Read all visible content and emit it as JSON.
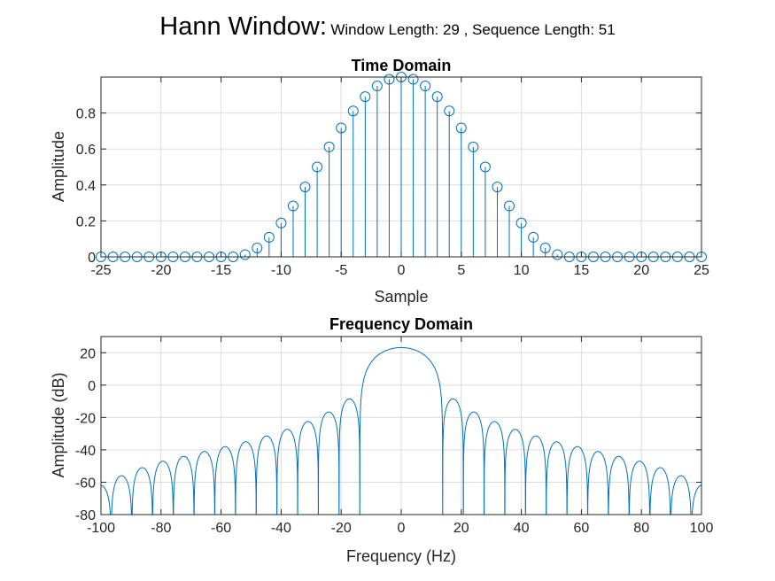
{
  "suptitle": {
    "main": "Hann Window:",
    "sub": "Window Length: 29 , Sequence Length: 51"
  },
  "colors": {
    "series": "#0072BD",
    "grid": "#dcdcdc",
    "axis": "#262626"
  },
  "chart_data": [
    {
      "type": "stem",
      "title": "Time Domain",
      "xlabel": "Sample",
      "ylabel": "Amplitude",
      "xlim": [
        -25,
        25
      ],
      "ylim": [
        0,
        1
      ],
      "xticks": [
        -25,
        -20,
        -15,
        -10,
        -5,
        0,
        5,
        10,
        15,
        20,
        25
      ],
      "yticks": [
        0,
        0.2,
        0.4,
        0.6,
        0.8
      ],
      "grid": true,
      "marker": "circle",
      "x": [
        -25,
        -24,
        -23,
        -22,
        -21,
        -20,
        -19,
        -18,
        -17,
        -16,
        -15,
        -14,
        -13,
        -12,
        -11,
        -10,
        -9,
        -8,
        -7,
        -6,
        -5,
        -4,
        -3,
        -2,
        -1,
        0,
        1,
        2,
        3,
        4,
        5,
        6,
        7,
        8,
        9,
        10,
        11,
        12,
        13,
        14,
        15,
        16,
        17,
        18,
        19,
        20,
        21,
        22,
        23,
        24,
        25
      ],
      "y": [
        0,
        0,
        0,
        0,
        0,
        0,
        0,
        0,
        0,
        0,
        0,
        0,
        0.0125,
        0.0495,
        0.1091,
        0.1883,
        0.2831,
        0.3887,
        0.5,
        0.6113,
        0.7169,
        0.8117,
        0.8909,
        0.9505,
        0.9875,
        1,
        0.9875,
        0.9505,
        0.8909,
        0.8117,
        0.7169,
        0.6113,
        0.5,
        0.3887,
        0.2831,
        0.1883,
        0.1091,
        0.0495,
        0.0125,
        0,
        0,
        0,
        0,
        0,
        0,
        0,
        0,
        0,
        0,
        0,
        0
      ]
    },
    {
      "type": "line",
      "title": "Frequency Domain",
      "xlabel": "Frequency (Hz)",
      "ylabel": "Amplitude (dB)",
      "xlim": [
        -100,
        100
      ],
      "ylim": [
        -80,
        30
      ],
      "xticks": [
        -100,
        -80,
        -60,
        -40,
        -20,
        0,
        20,
        40,
        60,
        80,
        100
      ],
      "yticks": [
        -80,
        -60,
        -40,
        -20,
        0,
        20
      ],
      "grid": true,
      "peak_db": 23.2,
      "mainlobe_null_hz": 13.8,
      "sidelobe_spacing_hz": 6.9,
      "sidelobe_peaks": [
        {
          "x": 17.3,
          "y": -8.5
        },
        {
          "x": 24.2,
          "y": -16.6
        },
        {
          "x": 31.1,
          "y": -22.5
        },
        {
          "x": 38.0,
          "y": -27.3
        },
        {
          "x": 44.9,
          "y": -31.4
        },
        {
          "x": 51.8,
          "y": -35.0
        },
        {
          "x": 58.7,
          "y": -38.0
        },
        {
          "x": 65.6,
          "y": -41.0
        },
        {
          "x": 72.5,
          "y": -44.0
        },
        {
          "x": 79.4,
          "y": -47.0
        },
        {
          "x": 86.3,
          "y": -51.0
        },
        {
          "x": 93.2,
          "y": -56.0
        },
        {
          "x": 100.0,
          "y": -62.0
        }
      ]
    }
  ]
}
